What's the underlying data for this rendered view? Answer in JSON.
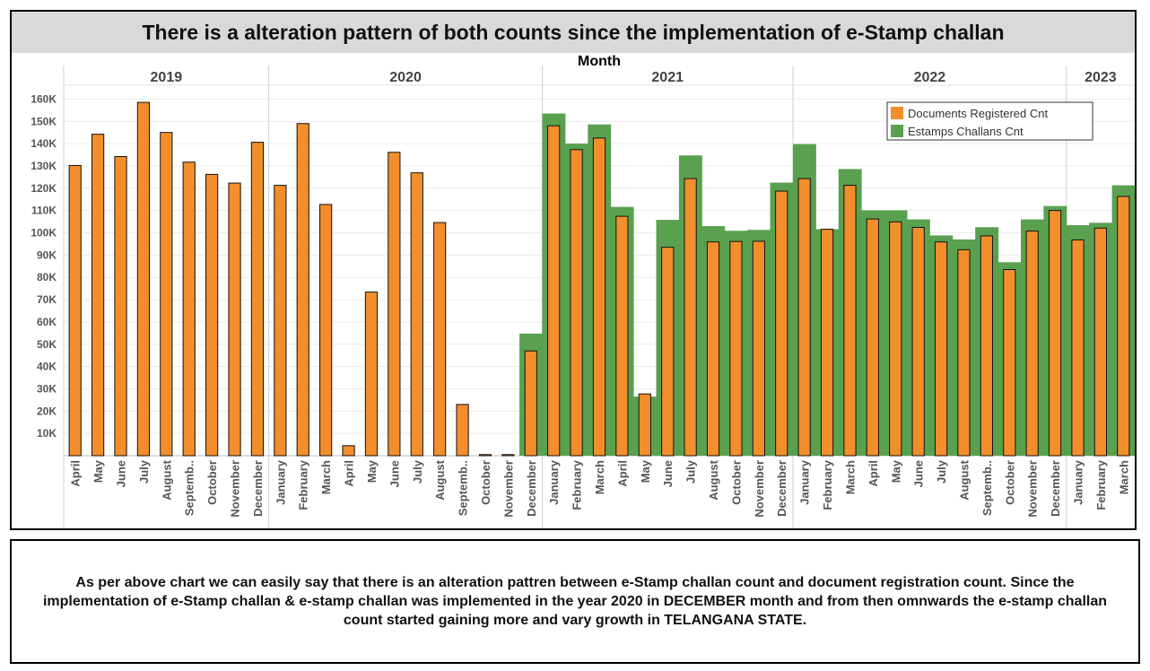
{
  "chart_data": {
    "type": "bar",
    "title": "There is a alteration pattern of both counts since the implementation of e-Stamp challan",
    "column_header": "Month",
    "years": [
      {
        "label": "2019",
        "count": 9
      },
      {
        "label": "2020",
        "count": 12
      },
      {
        "label": "2021",
        "count": 11
      },
      {
        "label": "2022",
        "count": 12
      },
      {
        "label": "2023",
        "count": 3
      }
    ],
    "categories": [
      "April",
      "May",
      "June",
      "July",
      "August",
      "Septemb..",
      "October",
      "November",
      "December",
      "January",
      "February",
      "March",
      "April",
      "May",
      "June",
      "July",
      "August",
      "Septemb..",
      "October",
      "November",
      "December",
      "January",
      "February",
      "March",
      "April",
      "May",
      "June",
      "July",
      "August",
      "October",
      "November",
      "December",
      "January",
      "February",
      "March",
      "April",
      "May",
      "June",
      "July",
      "August",
      "Septemb..",
      "October",
      "November",
      "December",
      "January",
      "February",
      "March"
    ],
    "series": [
      {
        "name": "Documents Registered Cnt",
        "color": "#f28e2b",
        "values": [
          130200,
          144200,
          134200,
          158500,
          145000,
          131700,
          126200,
          122300,
          140600,
          121300,
          149000,
          112700,
          4500,
          73400,
          136100,
          126900,
          104600,
          23000,
          500,
          500,
          47000,
          148000,
          137300,
          142500,
          107400,
          27700,
          93500,
          124300,
          95900,
          96100,
          96200,
          118700,
          124300,
          101600,
          121300,
          106200,
          104900,
          102400,
          95900,
          92400,
          98600,
          83500,
          100800,
          110000,
          96800,
          102100,
          116300
        ]
      },
      {
        "name": "Estamps Challans Cnt",
        "color": "#59a14f",
        "values": [
          null,
          null,
          null,
          null,
          null,
          null,
          null,
          null,
          null,
          null,
          null,
          null,
          null,
          null,
          null,
          null,
          null,
          null,
          null,
          null,
          54800,
          153500,
          140000,
          148600,
          111600,
          26500,
          105800,
          134700,
          103000,
          100900,
          101300,
          122500,
          139800,
          101600,
          128600,
          110100,
          110100,
          106000,
          98800,
          97000,
          102500,
          86800,
          106000,
          112000,
          103400,
          104500,
          121300
        ]
      }
    ],
    "ylim": [
      0,
      165000
    ],
    "yticks": [
      "10K",
      "20K",
      "30K",
      "40K",
      "50K",
      "60K",
      "70K",
      "80K",
      "90K",
      "100K",
      "110K",
      "120K",
      "130K",
      "140K",
      "150K",
      "160K"
    ],
    "legend_position": "top-right",
    "grid": "horizontal"
  },
  "note": {
    "text": "As per above chart we can easily say that there is an alteration pattren between e-Stamp challan count and document registration count. Since the implementation of e-Stamp challan & e-stamp challan was implemented in the year 2020 in DECEMBER month and from then omnwards the e-stamp challan count started gaining more and vary growth in TELANGANA STATE."
  }
}
